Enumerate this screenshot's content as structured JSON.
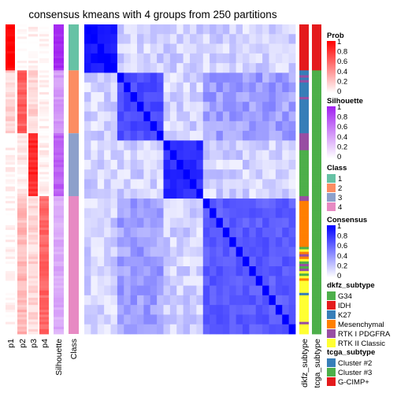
{
  "chart_data": {
    "type": "heatmap",
    "title": "consensus kmeans with 4 groups from 250 partitions",
    "tracks": [
      "p1",
      "p2",
      "p3",
      "p4",
      "Silhouette",
      "Class"
    ],
    "right_tracks": [
      "dkfz_subtype",
      "tcga_subtype"
    ],
    "groups": [
      {
        "class": 1,
        "rows": 19,
        "p": [
          1.0,
          0.0,
          0.04,
          0.0
        ],
        "silhouette": 0.96,
        "consensus_within": 1.0
      },
      {
        "class": 2,
        "rows": 26,
        "p": [
          0.16,
          0.64,
          0.16,
          0.04
        ],
        "silhouette": 0.45,
        "consensus_within": 0.78
      },
      {
        "class": 3,
        "rows": 26,
        "p": [
          0.04,
          0.08,
          0.84,
          0.04
        ],
        "silhouette": 0.72,
        "consensus_within": 0.9
      },
      {
        "class": 4,
        "rows": 57,
        "p": [
          0.02,
          0.28,
          0.16,
          0.6
        ],
        "silhouette": 0.38,
        "consensus_within": 0.72
      }
    ],
    "dkfz_sequence": [
      "IDH",
      "IDH",
      "IDH",
      "IDH",
      "IDH",
      "IDH",
      "IDH",
      "IDH",
      "IDH",
      "IDH",
      "IDH",
      "IDH",
      "IDH",
      "IDH",
      "IDH",
      "IDH",
      "IDH",
      "IDH",
      "IDH",
      "K27",
      "K27",
      "RTK I PDGFRA",
      "K27",
      "RTK I PDGFRA",
      "K27",
      "K27",
      "K27",
      "K27",
      "K27",
      "K27",
      "RTK I PDGFRA",
      "K27",
      "K27",
      "K27",
      "K27",
      "K27",
      "K27",
      "K27",
      "K27",
      "K27",
      "K27",
      "K27",
      "K27",
      "K27",
      "K27",
      "RTK I PDGFRA",
      "RTK I PDGFRA",
      "RTK I PDGFRA",
      "RTK I PDGFRA",
      "RTK I PDGFRA",
      "RTK I PDGFRA",
      "RTK I PDGFRA",
      "G34",
      "G34",
      "G34",
      "G34",
      "G34",
      "G34",
      "G34",
      "G34",
      "G34",
      "G34",
      "G34",
      "G34",
      "G34",
      "G34",
      "G34",
      "G34",
      "G34",
      "G34",
      "G34",
      "RTK I PDGFRA",
      "RTK I PDGFRA",
      "Mesenchymal",
      "Mesenchymal",
      "Mesenchymal",
      "Mesenchymal",
      "Mesenchymal",
      "Mesenchymal",
      "Mesenchymal",
      "Mesenchymal",
      "Mesenchymal",
      "Mesenchymal",
      "Mesenchymal",
      "Mesenchymal",
      "Mesenchymal",
      "Mesenchymal",
      "Mesenchymal",
      "Mesenchymal",
      "Mesenchymal",
      "Mesenchymal",
      "Mesenchymal",
      "G34",
      "RTK II Classic",
      "Mesenchymal",
      "RTK I PDGFRA",
      "Mesenchymal",
      "RTK II Classic",
      "G34",
      "RTK I PDGFRA",
      "G34",
      "RTK I PDGFRA",
      "RTK II Classic",
      "G34",
      "RTK II Classic",
      "Mesenchymal",
      "RTK II Classic",
      "RTK II Classic",
      "RTK II Classic",
      "RTK II Classic",
      "RTK II Classic",
      "K27",
      "RTK II Classic",
      "RTK II Classic",
      "RTK II Classic",
      "RTK II Classic",
      "RTK II Classic",
      "RTK II Classic",
      "RTK II Classic",
      "RTK II Classic",
      "RTK II Classic",
      "RTK II Classic",
      "RTK II Classic",
      "RTK I PDGFRA",
      "RTK II Classic",
      "RTK II Classic",
      "RTK II Classic",
      "RTK II Classic"
    ],
    "tcga_sequence": [
      "G-CIMP+",
      "G-CIMP+",
      "G-CIMP+",
      "G-CIMP+",
      "G-CIMP+",
      "G-CIMP+",
      "G-CIMP+",
      "G-CIMP+",
      "G-CIMP+",
      "G-CIMP+",
      "G-CIMP+",
      "G-CIMP+",
      "G-CIMP+",
      "G-CIMP+",
      "G-CIMP+",
      "G-CIMP+",
      "G-CIMP+",
      "G-CIMP+",
      "G-CIMP+",
      "Cluster #3",
      "Cluster #3",
      "Cluster #3",
      "Cluster #3",
      "Cluster #3",
      "Cluster #3",
      "Cluster #3",
      "Cluster #3",
      "Cluster #3",
      "Cluster #3",
      "Cluster #3",
      "Cluster #3",
      "Cluster #3",
      "Cluster #3",
      "Cluster #3",
      "Cluster #3",
      "Cluster #3",
      "Cluster #3",
      "Cluster #3",
      "Cluster #3",
      "Cluster #3",
      "Cluster #3",
      "Cluster #3",
      "Cluster #3",
      "Cluster #3",
      "Cluster #3",
      "Cluster #3",
      "Cluster #3",
      "Cluster #3",
      "Cluster #3",
      "Cluster #3",
      "Cluster #3",
      "Cluster #3",
      "Cluster #3",
      "Cluster #3",
      "Cluster #3",
      "Cluster #3",
      "Cluster #3",
      "Cluster #3",
      "Cluster #3",
      "Cluster #3",
      "Cluster #3",
      "Cluster #3",
      "Cluster #3",
      "Cluster #3",
      "Cluster #3",
      "Cluster #3",
      "Cluster #3",
      "Cluster #3",
      "Cluster #3",
      "Cluster #3",
      "Cluster #3",
      "Cluster #3",
      "Cluster #3",
      "Cluster #3",
      "Cluster #3",
      "Cluster #3",
      "Cluster #3",
      "Cluster #3",
      "Cluster #3",
      "Cluster #3",
      "Cluster #3",
      "Cluster #3",
      "Cluster #3",
      "Cluster #3",
      "Cluster #3",
      "Cluster #3",
      "Cluster #3",
      "Cluster #3",
      "Cluster #3",
      "Cluster #3",
      "Cluster #3",
      "Cluster #3",
      "Cluster #3",
      "Cluster #3",
      "Cluster #3",
      "Cluster #3",
      "Cluster #3",
      "Cluster #3",
      "Cluster #3",
      "Cluster #3",
      "Cluster #3",
      "Cluster #3",
      "Cluster #3",
      "Cluster #3",
      "Cluster #3",
      "Cluster #3",
      "Cluster #3",
      "Cluster #3",
      "Cluster #3",
      "Cluster #3",
      "Cluster #3",
      "Cluster #3",
      "Cluster #3",
      "Cluster #3",
      "Cluster #3",
      "Cluster #3",
      "Cluster #3",
      "Cluster #3",
      "Cluster #3",
      "Cluster #3",
      "Cluster #3",
      "Cluster #3",
      "Cluster #3",
      "Cluster #3",
      "Cluster #3",
      "Cluster #3",
      "Cluster #3",
      "Cluster #3"
    ],
    "legends": [
      {
        "title": "Prob",
        "kind": "gradient",
        "low": "#ffffff",
        "high": "#ff0000",
        "ticks": [
          "1",
          "0.8",
          "0.6",
          "0.4",
          "0.2",
          "0"
        ]
      },
      {
        "title": "Silhouette",
        "kind": "gradient",
        "low": "#ffffff",
        "high": "#a020f0",
        "ticks": [
          "1",
          "0.8",
          "0.6",
          "0.4",
          "0.2",
          "0"
        ]
      },
      {
        "title": "Class",
        "kind": "discrete",
        "items": [
          {
            "label": "1",
            "color": "#66c2a5"
          },
          {
            "label": "2",
            "color": "#fc8d62"
          },
          {
            "label": "3",
            "color": "#8da0cb"
          },
          {
            "label": "4",
            "color": "#e78ac3"
          }
        ]
      },
      {
        "title": "Consensus",
        "kind": "gradient",
        "low": "#ffffff",
        "high": "#0000ff",
        "ticks": [
          "1",
          "0.8",
          "0.6",
          "0.4",
          "0.2",
          "0"
        ]
      },
      {
        "title": "dkfz_subtype",
        "kind": "discrete",
        "items": [
          {
            "label": "G34",
            "color": "#4daf4a"
          },
          {
            "label": "IDH",
            "color": "#e41a1c"
          },
          {
            "label": "K27",
            "color": "#377eb8"
          },
          {
            "label": "Mesenchymal",
            "color": "#ff7f00"
          },
          {
            "label": "RTK I PDGFRA",
            "color": "#984ea3"
          },
          {
            "label": "RTK II Classic",
            "color": "#ffff33"
          }
        ]
      },
      {
        "title": "tcga_subtype",
        "kind": "discrete",
        "items": [
          {
            "label": "Cluster #2",
            "color": "#377eb8"
          },
          {
            "label": "Cluster #3",
            "color": "#4daf4a"
          },
          {
            "label": "G-CIMP+",
            "color": "#e41a1c"
          }
        ]
      }
    ]
  }
}
